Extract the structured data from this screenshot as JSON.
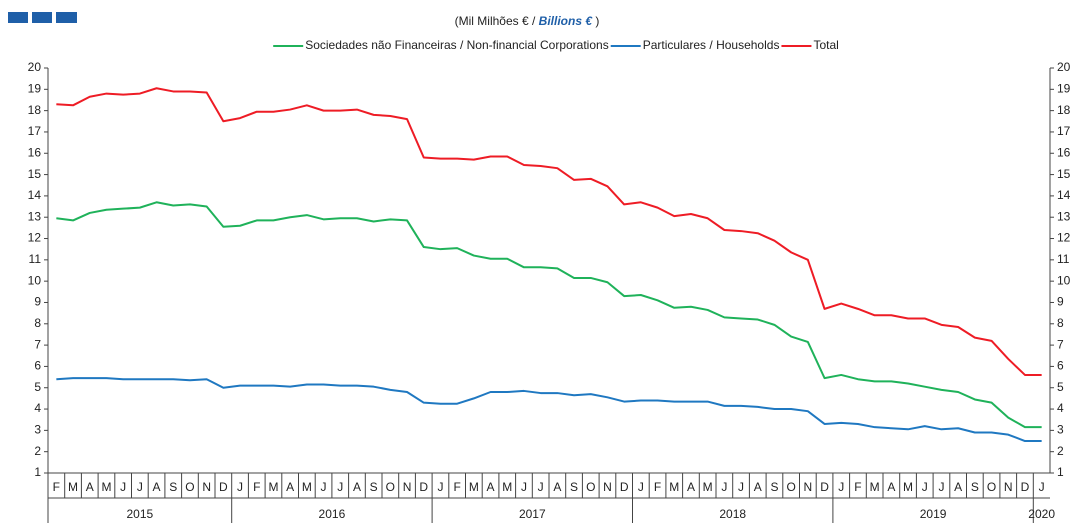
{
  "chart_data": {
    "type": "line",
    "subtitle_parts": [
      "(Mil Milhões € / ",
      "Billions €",
      " )"
    ],
    "categories": [
      "F",
      "M",
      "A",
      "M",
      "J",
      "J",
      "A",
      "S",
      "O",
      "N",
      "D",
      "J",
      "F",
      "M",
      "A",
      "M",
      "J",
      "J",
      "A",
      "S",
      "O",
      "N",
      "D",
      "J",
      "F",
      "M",
      "A",
      "M",
      "J",
      "J",
      "A",
      "S",
      "O",
      "N",
      "D",
      "J",
      "F",
      "M",
      "A",
      "M",
      "J",
      "J",
      "A",
      "S",
      "O",
      "N",
      "D",
      "J",
      "F",
      "M",
      "A",
      "M",
      "J",
      "J",
      "A",
      "S",
      "O",
      "N",
      "D",
      "J"
    ],
    "years": [
      "2015",
      "2016",
      "2017",
      "2018",
      "2019",
      "2020"
    ],
    "ylim": [
      1,
      20
    ],
    "yticks": [
      1,
      2,
      3,
      4,
      5,
      6,
      7,
      8,
      9,
      10,
      11,
      12,
      13,
      14,
      15,
      16,
      17,
      18,
      19,
      20
    ],
    "y2lim": [
      1,
      20
    ],
    "y2ticks": [
      1,
      2,
      3,
      4,
      5,
      6,
      7,
      8,
      9,
      10,
      11,
      12,
      13,
      14,
      15,
      16,
      17,
      18,
      19,
      20
    ],
    "series": [
      {
        "name": "Sociedades não Financeiras / Non-financial Corporations",
        "color": "#1fb25a",
        "values": [
          12.95,
          12.85,
          13.2,
          13.35,
          13.4,
          13.45,
          13.7,
          13.55,
          13.6,
          13.5,
          12.55,
          12.6,
          12.85,
          12.85,
          13.0,
          13.1,
          12.9,
          12.95,
          12.95,
          12.8,
          12.9,
          12.85,
          11.6,
          11.5,
          11.55,
          11.2,
          11.05,
          11.05,
          10.65,
          10.65,
          10.6,
          10.15,
          10.15,
          9.95,
          9.3,
          9.35,
          9.1,
          8.75,
          8.8,
          8.65,
          8.3,
          8.25,
          8.2,
          7.95,
          7.4,
          7.15,
          5.45,
          5.6,
          5.4,
          5.3,
          5.3,
          5.2,
          5.05,
          4.9,
          4.8,
          4.45,
          4.3,
          3.6,
          3.15,
          3.15
        ]
      },
      {
        "name": "Particulares / Households",
        "color": "#1f78c1",
        "values": [
          5.4,
          5.45,
          5.45,
          5.45,
          5.4,
          5.4,
          5.4,
          5.4,
          5.35,
          5.4,
          5.0,
          5.1,
          5.1,
          5.1,
          5.05,
          5.15,
          5.15,
          5.1,
          5.1,
          5.05,
          4.9,
          4.8,
          4.3,
          4.25,
          4.25,
          4.5,
          4.8,
          4.8,
          4.85,
          4.75,
          4.75,
          4.65,
          4.7,
          4.55,
          4.35,
          4.4,
          4.4,
          4.35,
          4.35,
          4.35,
          4.15,
          4.15,
          4.1,
          4.0,
          4.0,
          3.9,
          3.3,
          3.35,
          3.3,
          3.15,
          3.1,
          3.05,
          3.2,
          3.05,
          3.1,
          2.9,
          2.9,
          2.8,
          2.5,
          2.5
        ]
      },
      {
        "name": "Total",
        "color": "#ee1c25",
        "values": [
          18.3,
          18.25,
          18.65,
          18.8,
          18.75,
          18.8,
          19.05,
          18.9,
          18.9,
          18.85,
          17.5,
          17.65,
          17.95,
          17.95,
          18.05,
          18.25,
          18.0,
          18.0,
          18.05,
          17.8,
          17.75,
          17.6,
          15.8,
          15.75,
          15.75,
          15.7,
          15.85,
          15.85,
          15.45,
          15.4,
          15.3,
          14.75,
          14.8,
          14.45,
          13.6,
          13.7,
          13.45,
          13.05,
          13.15,
          12.95,
          12.4,
          12.35,
          12.25,
          11.9,
          11.35,
          11.0,
          8.7,
          8.95,
          8.7,
          8.4,
          8.4,
          8.25,
          8.25,
          7.95,
          7.85,
          7.35,
          7.2,
          6.35,
          5.6,
          5.6
        ]
      }
    ]
  }
}
